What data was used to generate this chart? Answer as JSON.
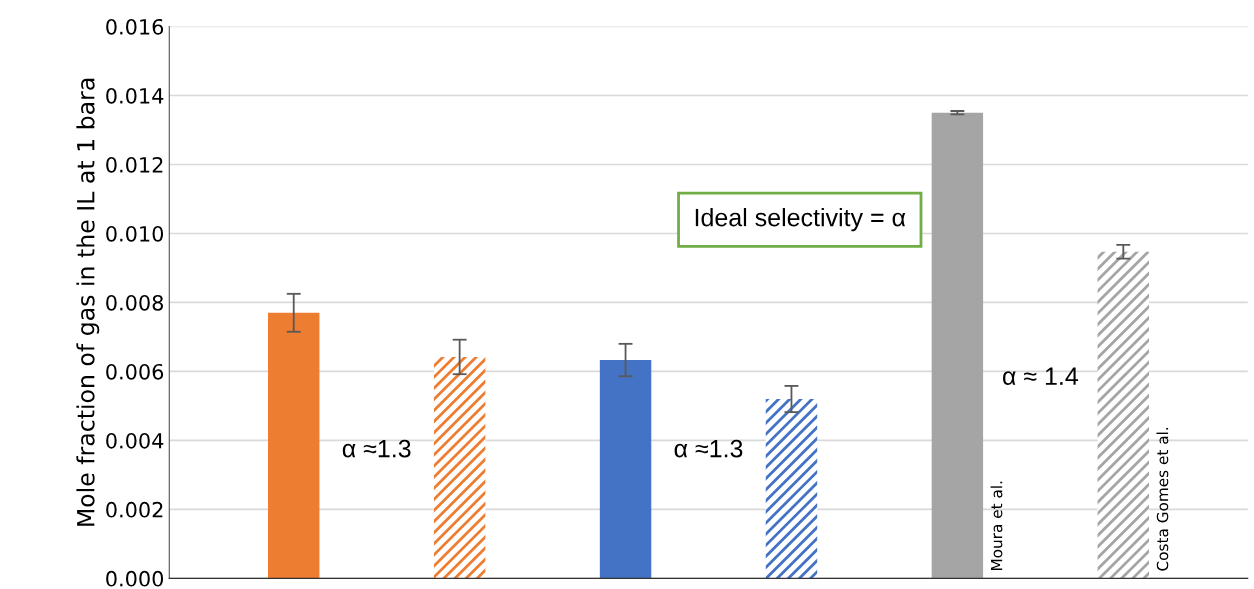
{
  "chart_data": {
    "type": "bar",
    "ylabel": "Mole fraction of gas in the IL at 1 bara",
    "categories": [
      null,
      null,
      null,
      null,
      null,
      null
    ],
    "series": [
      {
        "colors": [
          "#ed7d31",
          null,
          "#4472c4",
          null,
          "#a5a5a5",
          null
        ],
        "values": [
          0.0077,
          null,
          0.00633,
          null,
          0.0135,
          null
        ],
        "errors": [
          0.00055,
          null,
          0.00047,
          null,
          5e-05,
          null
        ]
      },
      {
        "colors": [
          null,
          "#ed7d31",
          null,
          "#4472c4",
          null,
          "#a5a5a5"
        ],
        "values": [
          null,
          0.00642,
          null,
          0.0052,
          null,
          0.00947
        ],
        "errors": [
          null,
          0.0005,
          null,
          0.00038,
          null,
          0.0002
        ]
      }
    ],
    "ylim": [
      0,
      0.016
    ],
    "yticks": [
      {
        "value": 0,
        "label": "0.000"
      },
      {
        "value": 0.002,
        "label": "0.002"
      },
      {
        "value": 0.004,
        "label": "0.004"
      },
      {
        "value": 0.006,
        "label": "0.006"
      },
      {
        "value": 0.008,
        "label": "0.008"
      },
      {
        "value": 0.01,
        "label": "0.010"
      },
      {
        "value": 0.012,
        "label": "0.012"
      },
      {
        "value": 0.014,
        "label": "0.014"
      },
      {
        "value": 0.016,
        "label": "0.016"
      }
    ],
    "grid": "y",
    "annotations": [
      "α ≈1.3",
      "α ≈1.3",
      "α ≈ 1.4",
      "Ideal selectivity = α",
      "Moura et al.",
      "Costa Gomes et al."
    ]
  }
}
